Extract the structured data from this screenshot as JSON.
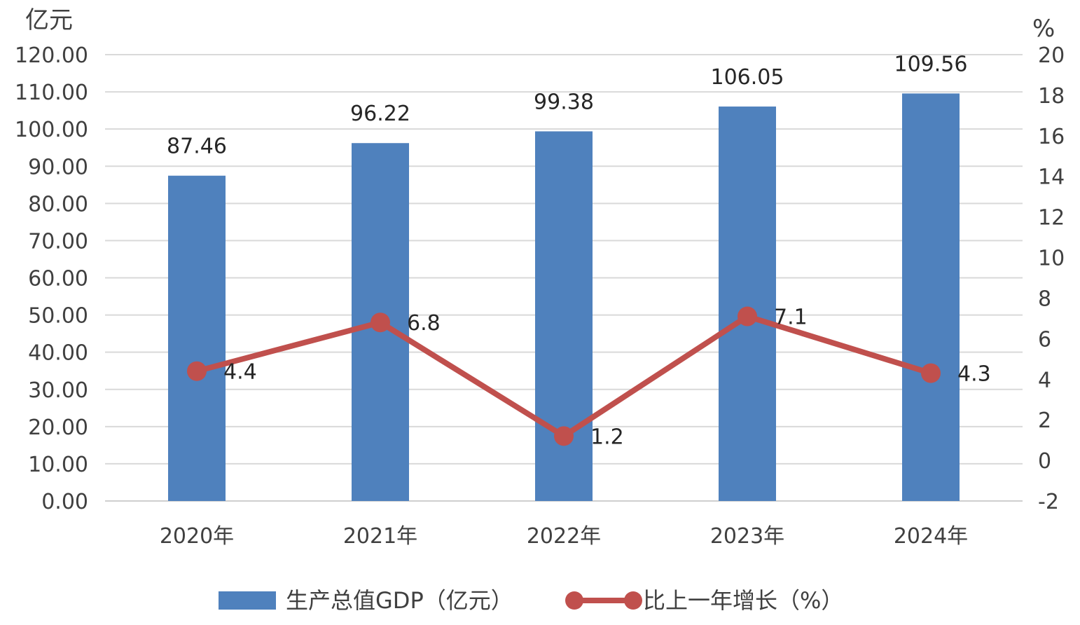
{
  "chart_data": {
    "type": "bar+line",
    "categories": [
      "2020年",
      "2021年",
      "2022年",
      "2023年",
      "2024年"
    ],
    "series": [
      {
        "name": "生产总值GDP（亿元）",
        "type": "bar",
        "axis": "left",
        "values": [
          87.46,
          96.22,
          99.38,
          106.05,
          109.56
        ],
        "labels": [
          "87.46",
          "96.22",
          "99.38",
          "106.05",
          "109.56"
        ],
        "color": "#4f81bd"
      },
      {
        "name": "比上一年增长（%）",
        "type": "line",
        "axis": "right",
        "values": [
          4.4,
          6.8,
          1.2,
          7.1,
          4.3
        ],
        "labels": [
          "4.4",
          "6.8",
          "1.2",
          "7.1",
          "4.3"
        ],
        "color": "#c0504d"
      }
    ],
    "y_left": {
      "unit": "亿元",
      "min": 0,
      "max": 120,
      "step": 10,
      "ticks": [
        "0.00",
        "10.00",
        "20.00",
        "30.00",
        "40.00",
        "50.00",
        "60.00",
        "70.00",
        "80.00",
        "90.00",
        "100.00",
        "110.00",
        "120.00"
      ]
    },
    "y_right": {
      "unit": "%",
      "min": -2,
      "max": 20,
      "step": 2,
      "ticks": [
        "-2",
        "0",
        "2",
        "4",
        "6",
        "8",
        "10",
        "12",
        "14",
        "16",
        "18",
        "20"
      ]
    },
    "grid": true,
    "legend_position": "bottom"
  }
}
